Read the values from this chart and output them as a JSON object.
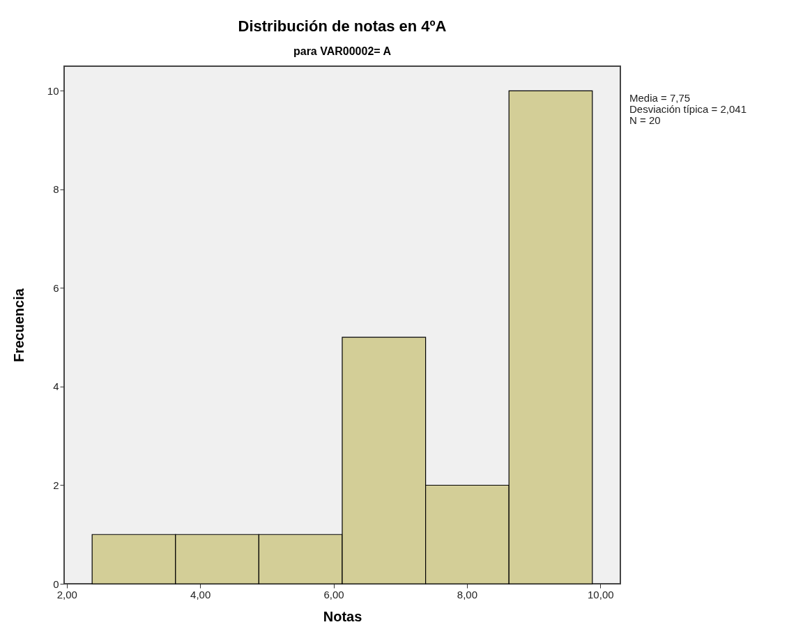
{
  "chart_data": {
    "type": "histogram",
    "title": "Distribución de notas en 4ºA",
    "subtitle": "para VAR00002= A",
    "xlabel": "Notas",
    "ylabel": "Frecuencia",
    "bins": [
      2.38,
      3.63,
      4.88,
      6.13,
      7.38,
      8.63,
      9.88
    ],
    "values": [
      1,
      1,
      1,
      5,
      2,
      10
    ],
    "color": "#d3ce97",
    "xlim": [
      1.96,
      10.3
    ],
    "ylim": [
      0,
      10.5
    ],
    "xticks": [
      {
        "value": 2,
        "label": "2,00"
      },
      {
        "value": 4,
        "label": "4,00"
      },
      {
        "value": 6,
        "label": "6,00"
      },
      {
        "value": 8,
        "label": "8,00"
      },
      {
        "value": 10,
        "label": "10,00"
      }
    ],
    "yticks": [
      0,
      2,
      4,
      6,
      8,
      10
    ],
    "grid": false,
    "annotations": [
      "Media = 7,75",
      "Desviación típica = 2,041",
      "N = 20"
    ]
  }
}
